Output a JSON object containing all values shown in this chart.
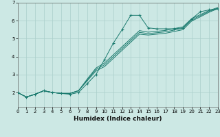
{
  "title": "",
  "xlabel": "Humidex (Indice chaleur)",
  "ylabel": "",
  "background_color": "#cce8e4",
  "grid_color": "#aacfcb",
  "line_color": "#1a7a6e",
  "x_data": [
    0,
    1,
    2,
    3,
    4,
    5,
    6,
    7,
    8,
    9,
    10,
    11,
    12,
    13,
    14,
    15,
    16,
    17,
    18,
    19,
    20,
    21,
    22,
    23
  ],
  "main_y": [
    2.0,
    1.75,
    1.9,
    2.1,
    2.0,
    1.95,
    1.9,
    2.0,
    2.5,
    3.0,
    3.85,
    4.75,
    5.5,
    6.3,
    6.3,
    5.6,
    5.55,
    5.55,
    5.55,
    5.6,
    6.1,
    6.5,
    6.6,
    6.65
  ],
  "line1_y": [
    2.0,
    1.75,
    1.9,
    2.1,
    2.0,
    1.95,
    1.95,
    2.1,
    2.65,
    3.2,
    3.45,
    3.9,
    4.35,
    4.8,
    5.25,
    5.2,
    5.25,
    5.3,
    5.4,
    5.5,
    5.98,
    6.22,
    6.47,
    6.67
  ],
  "line2_y": [
    2.0,
    1.75,
    1.9,
    2.1,
    2.0,
    1.95,
    1.95,
    2.1,
    2.7,
    3.28,
    3.55,
    4.0,
    4.45,
    4.9,
    5.35,
    5.28,
    5.33,
    5.38,
    5.48,
    5.58,
    6.05,
    6.28,
    6.52,
    6.7
  ],
  "line3_y": [
    2.0,
    1.75,
    1.9,
    2.1,
    2.0,
    1.95,
    1.95,
    2.1,
    2.75,
    3.36,
    3.65,
    4.1,
    4.55,
    5.0,
    5.45,
    5.36,
    5.41,
    5.46,
    5.56,
    5.66,
    6.12,
    6.34,
    6.57,
    6.73
  ],
  "ylim": [
    1.2,
    7.0
  ],
  "xlim": [
    0,
    23
  ],
  "yticks": [
    2,
    3,
    4,
    5,
    6,
    7
  ],
  "xticks": [
    0,
    1,
    2,
    3,
    4,
    5,
    6,
    7,
    8,
    9,
    10,
    11,
    12,
    13,
    14,
    15,
    16,
    17,
    18,
    19,
    20,
    21,
    22,
    23
  ]
}
